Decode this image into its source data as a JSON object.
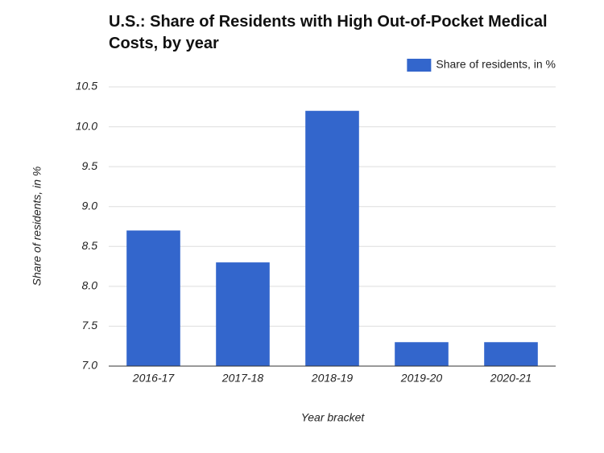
{
  "chart_data": {
    "type": "bar",
    "title": "U.S.: Share of Residents with High Out-of-Pocket Medical Costs, by year",
    "x_label": "Year bracket",
    "y_label": "Share of residents, in %",
    "categories": [
      "2016-17",
      "2017-18",
      "2018-19",
      "2019-20",
      "2020-21"
    ],
    "series": [
      {
        "name": "Share of residents, in %",
        "color": "#3366cc",
        "values": [
          8.7,
          8.3,
          10.2,
          7.3,
          7.3
        ]
      }
    ],
    "ylim": [
      7.0,
      10.5
    ],
    "yticks": [
      {
        "value": 7,
        "label": "7.0"
      },
      7.5,
      {
        "value": 8,
        "label": "8.0"
      },
      8.5,
      {
        "value": 9,
        "label": "9.0"
      },
      9.5,
      {
        "value": 10,
        "label": "10.0"
      },
      10.5
    ],
    "grid": true,
    "legend": "top-right"
  }
}
